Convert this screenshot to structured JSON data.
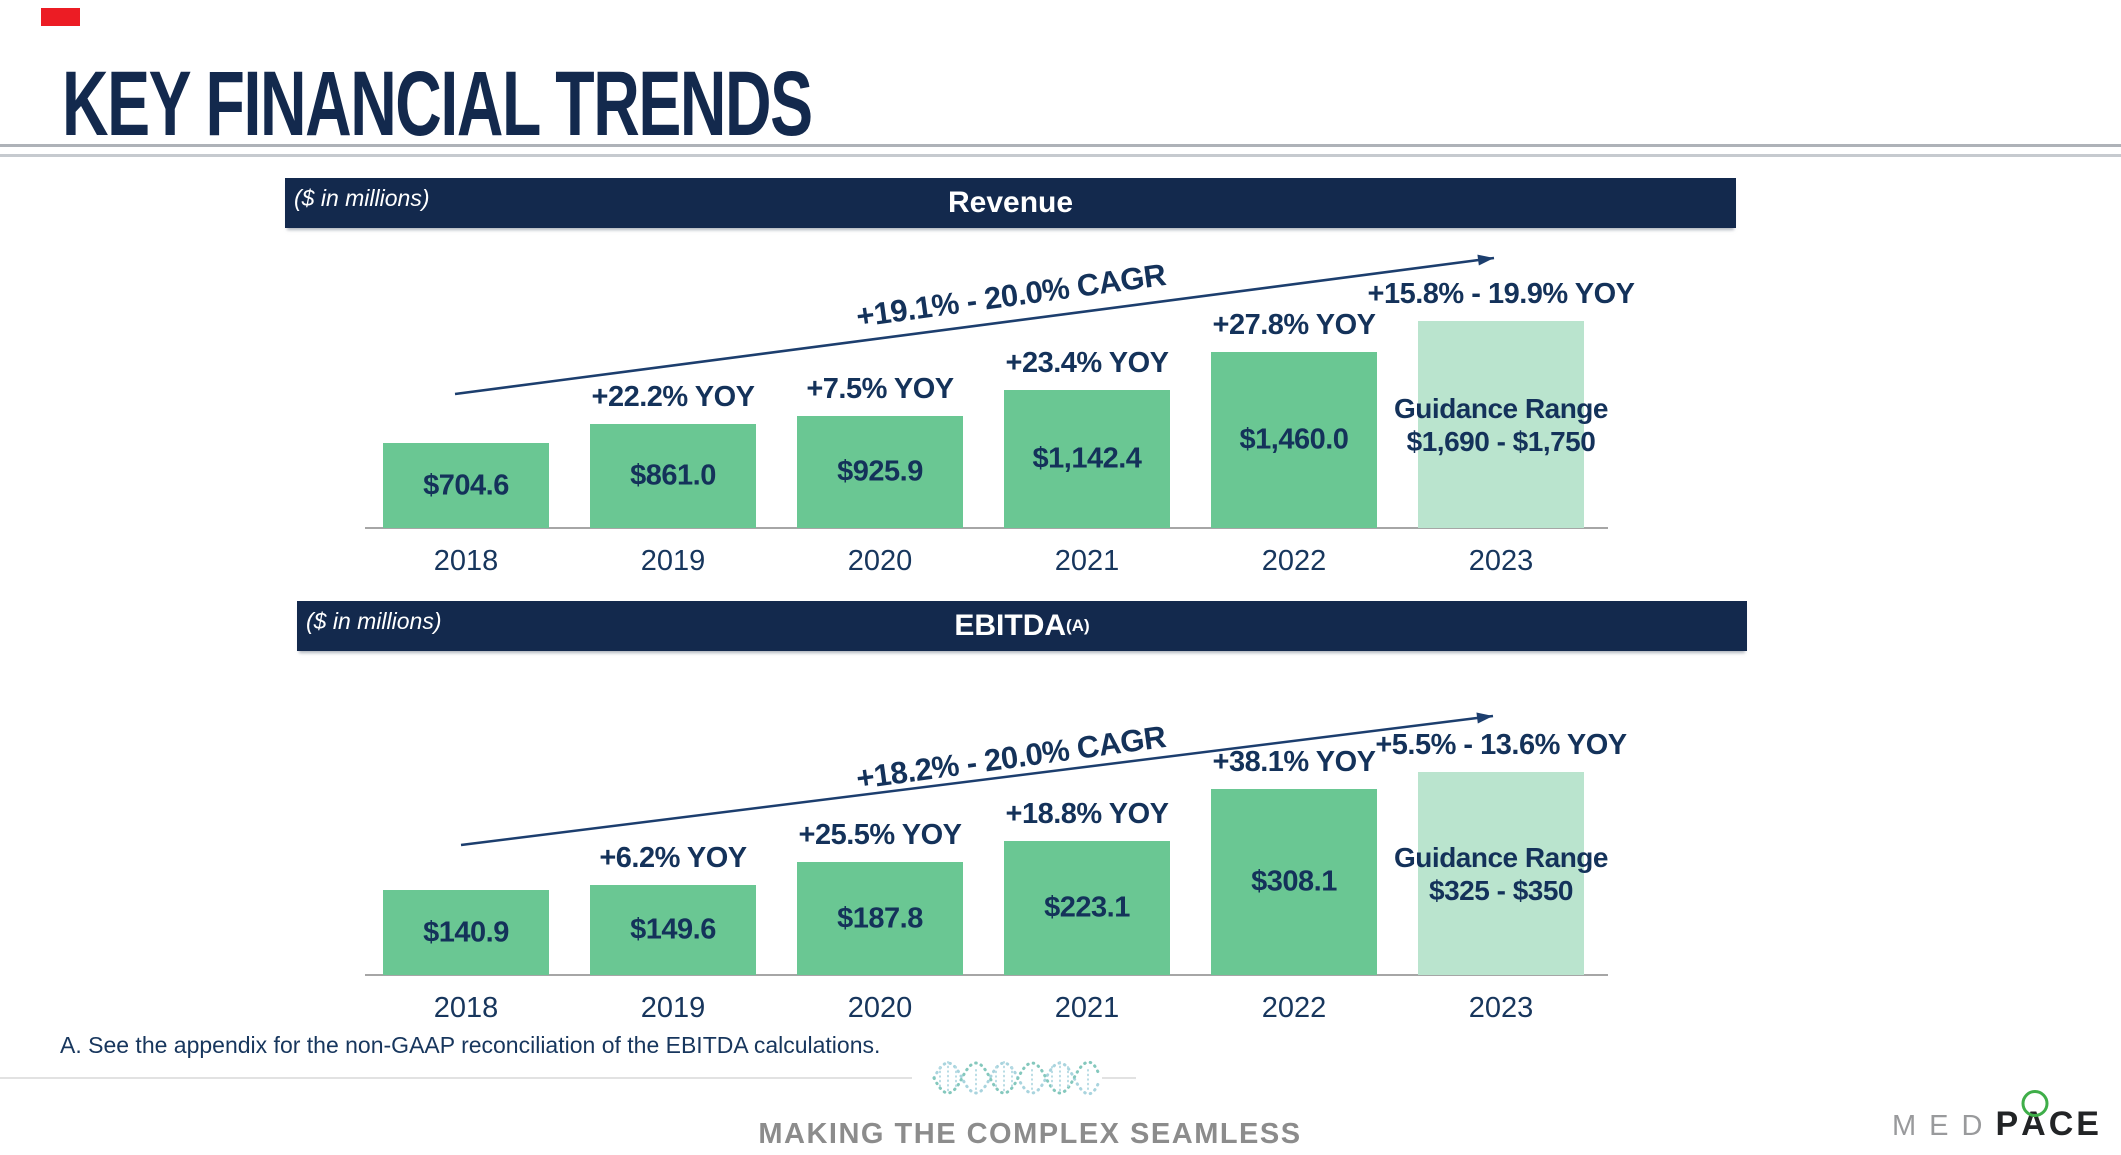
{
  "slide": {
    "title": "KEY FINANCIAL TRENDS",
    "footnote": "A. See the appendix for the non-GAAP reconciliation of the EBITDA calculations.",
    "footer_tagline": "MAKING THE COMPLEX SEAMLESS",
    "logo": {
      "gray_part": "MED",
      "bold_p": "P",
      "bold_a": "A",
      "bold_ce": "CE"
    }
  },
  "colors": {
    "header_navy": "#13294d",
    "text_navy": "#14325a",
    "bar_green": "#6ac793",
    "bar_light_green": "#bae4ce",
    "axis_gray": "#a6a6a6",
    "arrow_navy": "#1c3e6e",
    "footer_gray": "#8c8c8c",
    "logo_green": "#3fae49",
    "accent_red": "#ec1c24"
  },
  "chart_data": [
    {
      "type": "bar",
      "title": "Revenue",
      "title_sup": "",
      "units_label": "($ in millions)",
      "categories": [
        "2018",
        "2019",
        "2020",
        "2021",
        "2022",
        "2023"
      ],
      "values": [
        704.6,
        861.0,
        925.9,
        1142.4,
        1460.0,
        1720
      ],
      "bar_value_labels": [
        "$704.6",
        "$861.0",
        "$925.9",
        "$1,142.4",
        "$1,460.0",
        ""
      ],
      "guidance_bar_index": 5,
      "guidance_label_lines": [
        "Guidance Range",
        "$1,690 - $1,750"
      ],
      "yoy_labels": [
        "",
        "+22.2% YOY",
        "+7.5% YOY",
        "+23.4% YOY",
        "+27.8% YOY",
        "+15.8% - 19.9% YOY"
      ],
      "cagr_label": "+19.1% - 20.0% CAGR",
      "xlabel": "",
      "ylabel": "",
      "ylim": [
        0,
        1800
      ],
      "grid": false,
      "legend": "none"
    },
    {
      "type": "bar",
      "title": "EBITDA",
      "title_sup": "(A)",
      "units_label": "($ in millions)",
      "categories": [
        "2018",
        "2019",
        "2020",
        "2021",
        "2022",
        "2023"
      ],
      "values": [
        140.9,
        149.6,
        187.8,
        223.1,
        308.1,
        337.5
      ],
      "bar_value_labels": [
        "$140.9",
        "$149.6",
        "$187.8",
        "$223.1",
        "$308.1",
        ""
      ],
      "guidance_bar_index": 5,
      "guidance_label_lines": [
        "Guidance Range",
        "$325 - $350"
      ],
      "yoy_labels": [
        "",
        "+6.2% YOY",
        "+25.5% YOY",
        "+18.8% YOY",
        "+38.1% YOY",
        "+5.5% - 13.6% YOY"
      ],
      "cagr_label": "+18.2% - 20.0% CAGR",
      "xlabel": "",
      "ylabel": "",
      "ylim": [
        0,
        360
      ],
      "grid": false,
      "legend": "none"
    }
  ]
}
